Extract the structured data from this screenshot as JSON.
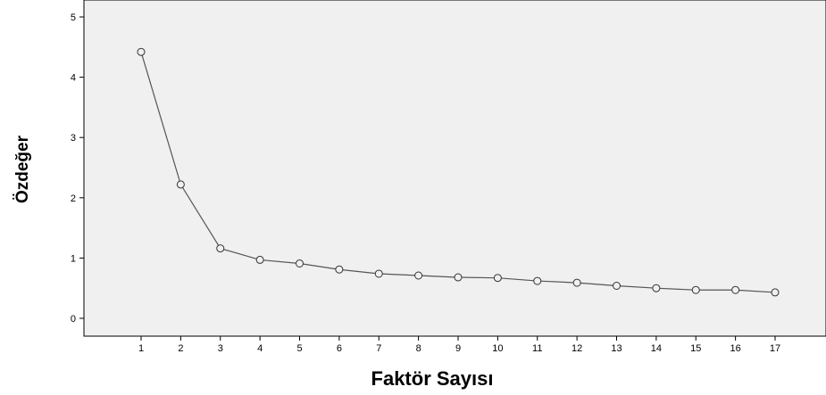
{
  "chart_data": {
    "type": "line",
    "title": "",
    "xlabel": "Faktör Sayısı",
    "ylabel": "Özdeğer",
    "x": [
      1,
      2,
      3,
      4,
      5,
      6,
      7,
      8,
      9,
      10,
      11,
      12,
      13,
      14,
      15,
      16,
      17
    ],
    "x_ticks": [
      "1",
      "2",
      "3",
      "4",
      "5",
      "6",
      "7",
      "8",
      "9",
      "10",
      "11",
      "12",
      "13",
      "14",
      "15",
      "16",
      "17"
    ],
    "y_ticks": [
      "0",
      "1",
      "2",
      "3",
      "4",
      "5"
    ],
    "series": [
      {
        "values": [
          4.42,
          2.22,
          1.16,
          0.97,
          0.91,
          0.81,
          0.74,
          0.71,
          0.68,
          0.67,
          0.62,
          0.59,
          0.54,
          0.5,
          0.47,
          0.47,
          0.43
        ]
      }
    ],
    "ylim": [
      0,
      5
    ],
    "xlim": [
      0,
      18
    ],
    "grid": false,
    "marker": "open-circle",
    "line_color": "#555555",
    "plot_background": "#f0f0f0",
    "axis_color": "#000000"
  }
}
